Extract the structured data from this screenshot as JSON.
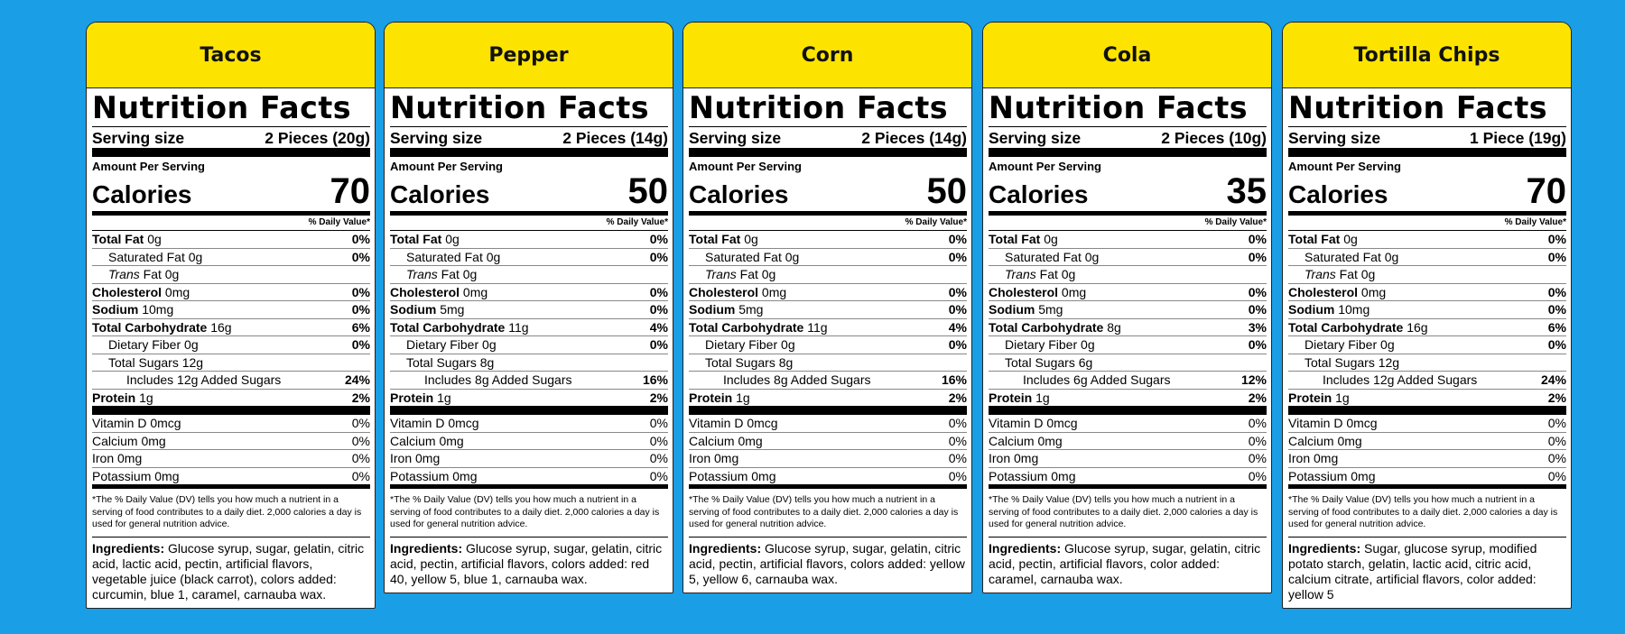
{
  "title_text": "Nutrition Facts",
  "labels": {
    "serving_size": "Serving size",
    "amount_per_serving": "Amount Per Serving",
    "calories": "Calories",
    "daily_value_header": "% Daily Value*",
    "total_fat": "Total Fat",
    "saturated_fat": "Saturated Fat",
    "trans": "Trans",
    "fat": "Fat",
    "cholesterol": "Cholesterol",
    "sodium": "Sodium",
    "total_carbohydrate": "Total Carbohydrate",
    "dietary_fiber": "Dietary Fiber",
    "total_sugars": "Total Sugars",
    "includes": "Includes",
    "added_sugars": "Added Sugars",
    "protein": "Protein",
    "vitamin_d": "Vitamin D",
    "calcium": "Calcium",
    "iron": "Iron",
    "potassium": "Potassium",
    "ingredients": "Ingredients:",
    "footnote": "*The % Daily Value (DV) tells you how much a nutrient in a serving of food contributes to a daily diet. 2,000 calories a day is used for general nutrition advice."
  },
  "products": [
    {
      "name": "Tacos",
      "serving": "2 Pieces (20g)",
      "calories": "70",
      "total_fat": "0g",
      "total_fat_dv": "0%",
      "saturated_fat": "0g",
      "saturated_fat_dv": "0%",
      "trans_fat": "0g",
      "cholesterol": "0mg",
      "cholesterol_dv": "0%",
      "sodium": "10mg",
      "sodium_dv": "0%",
      "carb": "16g",
      "carb_dv": "6%",
      "fiber": "0g",
      "fiber_dv": "0%",
      "sugars": "12g",
      "added_sugars": "12g",
      "added_sugars_dv": "24%",
      "protein": "1g",
      "protein_dv": "2%",
      "vitd": "0mcg",
      "vitd_dv": "0%",
      "calcium": "0mg",
      "calcium_dv": "0%",
      "iron": "0mg",
      "iron_dv": "0%",
      "potassium": "0mg",
      "potassium_dv": "0%",
      "ingredients": "Glucose syrup, sugar, gelatin, citric acid, lactic acid, pectin, artificial flavors, vegetable juice (black carrot), colors added: curcumin, blue 1, caramel, carnauba wax."
    },
    {
      "name": "Pepper",
      "serving": "2 Pieces (14g)",
      "calories": "50",
      "total_fat": "0g",
      "total_fat_dv": "0%",
      "saturated_fat": "0g",
      "saturated_fat_dv": "0%",
      "trans_fat": "0g",
      "cholesterol": "0mg",
      "cholesterol_dv": "0%",
      "sodium": "5mg",
      "sodium_dv": "0%",
      "carb": "11g",
      "carb_dv": "4%",
      "fiber": "0g",
      "fiber_dv": "0%",
      "sugars": "8g",
      "added_sugars": "8g",
      "added_sugars_dv": "16%",
      "protein": "1g",
      "protein_dv": "2%",
      "vitd": "0mcg",
      "vitd_dv": "0%",
      "calcium": "0mg",
      "calcium_dv": "0%",
      "iron": "0mg",
      "iron_dv": "0%",
      "potassium": "0mg",
      "potassium_dv": "0%",
      "ingredients": "Glucose syrup, sugar, gelatin, citric acid, pectin, artificial flavors, colors added: red 40, yellow 5, blue 1, carnauba wax."
    },
    {
      "name": "Corn",
      "serving": "2 Pieces (14g)",
      "calories": "50",
      "total_fat": "0g",
      "total_fat_dv": "0%",
      "saturated_fat": "0g",
      "saturated_fat_dv": "0%",
      "trans_fat": "0g",
      "cholesterol": "0mg",
      "cholesterol_dv": "0%",
      "sodium": "5mg",
      "sodium_dv": "0%",
      "carb": "11g",
      "carb_dv": "4%",
      "fiber": "0g",
      "fiber_dv": "0%",
      "sugars": "8g",
      "added_sugars": "8g",
      "added_sugars_dv": "16%",
      "protein": "1g",
      "protein_dv": "2%",
      "vitd": "0mcg",
      "vitd_dv": "0%",
      "calcium": "0mg",
      "calcium_dv": "0%",
      "iron": "0mg",
      "iron_dv": "0%",
      "potassium": "0mg",
      "potassium_dv": "0%",
      "ingredients": "Glucose syrup, sugar, gelatin, citric acid, pectin, artificial flavors, colors added: yellow 5, yellow 6, carnauba wax."
    },
    {
      "name": "Cola",
      "serving": "2 Pieces (10g)",
      "calories": "35",
      "total_fat": "0g",
      "total_fat_dv": "0%",
      "saturated_fat": "0g",
      "saturated_fat_dv": "0%",
      "trans_fat": "0g",
      "cholesterol": "0mg",
      "cholesterol_dv": "0%",
      "sodium": "5mg",
      "sodium_dv": "0%",
      "carb": "8g",
      "carb_dv": "3%",
      "fiber": "0g",
      "fiber_dv": "0%",
      "sugars": "6g",
      "added_sugars": "6g",
      "added_sugars_dv": "12%",
      "protein": "1g",
      "protein_dv": "2%",
      "vitd": "0mcg",
      "vitd_dv": "0%",
      "calcium": "0mg",
      "calcium_dv": "0%",
      "iron": "0mg",
      "iron_dv": "0%",
      "potassium": "0mg",
      "potassium_dv": "0%",
      "ingredients": "Glucose syrup, sugar, gelatin, citric acid, pectin, artificial flavors, color added: caramel, carnauba wax."
    },
    {
      "name": "Tortilla Chips",
      "serving": "1 Piece (19g)",
      "calories": "70",
      "total_fat": "0g",
      "total_fat_dv": "0%",
      "saturated_fat": "0g",
      "saturated_fat_dv": "0%",
      "trans_fat": "0g",
      "cholesterol": "0mg",
      "cholesterol_dv": "0%",
      "sodium": "10mg",
      "sodium_dv": "0%",
      "carb": "16g",
      "carb_dv": "6%",
      "fiber": "0g",
      "fiber_dv": "0%",
      "sugars": "12g",
      "added_sugars": "12g",
      "added_sugars_dv": "24%",
      "protein": "1g",
      "protein_dv": "2%",
      "vitd": "0mcg",
      "vitd_dv": "0%",
      "calcium": "0mg",
      "calcium_dv": "0%",
      "iron": "0mg",
      "iron_dv": "0%",
      "potassium": "0mg",
      "potassium_dv": "0%",
      "ingredients": "Sugar, glucose syrup, modified potato starch, gelatin, lactic acid, citric acid, calcium citrate, artificial flavors, color added: yellow 5"
    }
  ]
}
